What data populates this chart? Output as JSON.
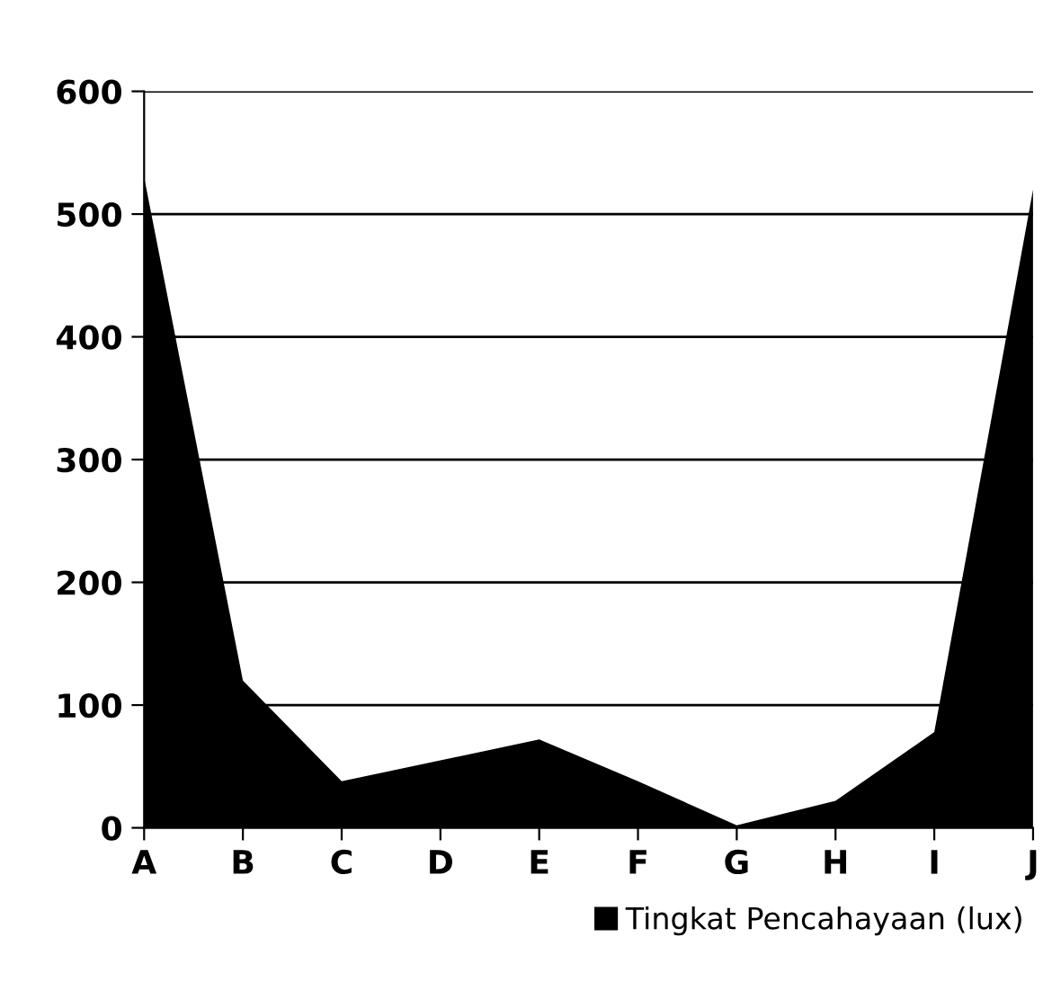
{
  "chart_data": {
    "type": "area",
    "categories": [
      "A",
      "B",
      "C",
      "D",
      "E",
      "F",
      "G",
      "H",
      "I",
      "J"
    ],
    "series": [
      {
        "name": "Tingkat Pencahayaan (lux)",
        "color": "#000000",
        "values": [
          530,
          120,
          38,
          55,
          72,
          38,
          2,
          22,
          78,
          520
        ]
      }
    ],
    "ylim": [
      0,
      600
    ],
    "yticks": [
      0,
      100,
      200,
      300,
      400,
      500,
      600
    ],
    "grid": "y",
    "legend": "bottom right"
  }
}
